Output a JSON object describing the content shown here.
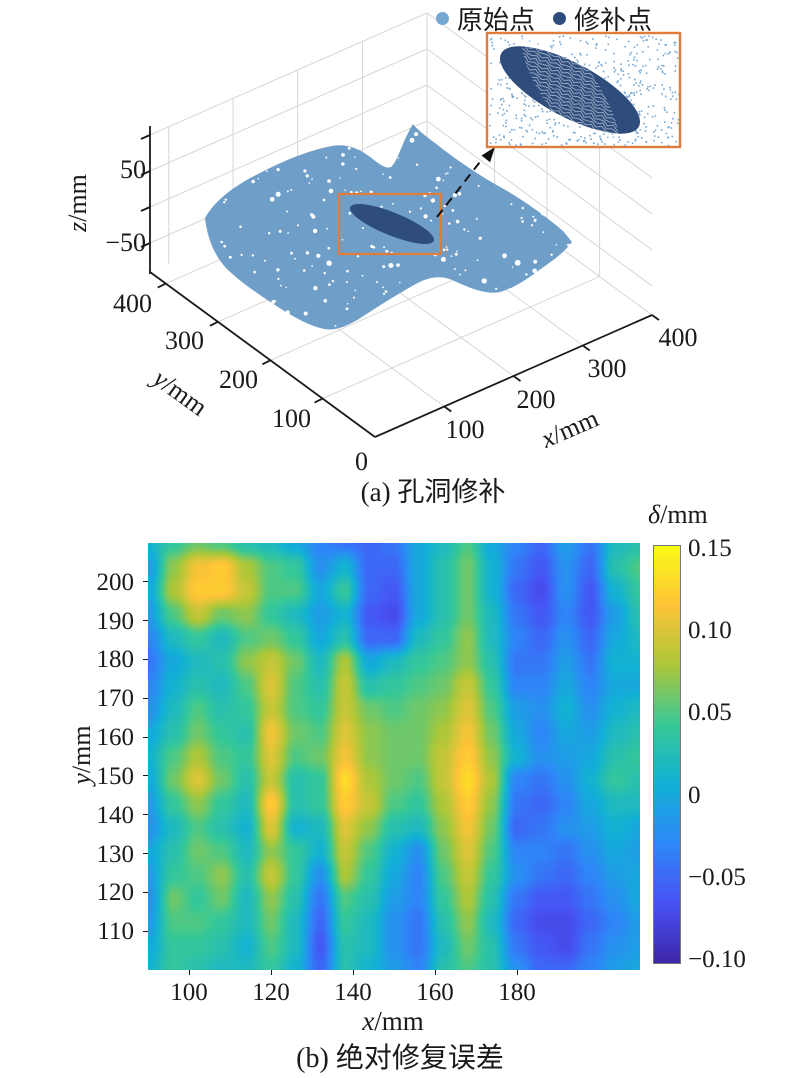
{
  "figure": {
    "panel_a": {
      "caption": "(a) 孔洞修补",
      "legend": [
        {
          "label": "原始点",
          "color": "#74a7d2"
        },
        {
          "label": "修补点",
          "color": "#2e4d7c"
        }
      ],
      "axes": {
        "x": {
          "var": "x",
          "unit": "/mm",
          "ticks": [
            "100",
            "200",
            "300",
            "400"
          ],
          "origin_label": "0"
        },
        "y": {
          "var": "y",
          "unit": "/mm",
          "ticks": [
            "400",
            "300",
            "200",
            "100"
          ]
        },
        "z": {
          "var": "z",
          "unit": "/mm",
          "ticks": [
            "50",
            "−50"
          ]
        }
      },
      "colors": {
        "surface": "#6f9fc9",
        "patch": "#2e4d7c",
        "inset_dots": "#74a7d2",
        "highlight_box": "#e07b3a",
        "grid": "#d6d6d6",
        "axis": "#1a1a1a"
      }
    },
    "panel_b": {
      "caption": "(b) 绝对修复误差",
      "x_axis": {
        "var": "x",
        "unit": "/mm",
        "ticks": [
          100,
          120,
          140,
          160,
          180
        ]
      },
      "y_axis": {
        "var": "y",
        "unit": "/mm",
        "ticks": [
          110,
          120,
          130,
          140,
          150,
          160,
          170,
          180,
          190,
          200
        ]
      },
      "colorbar": {
        "var": "δ",
        "unit": "/mm",
        "tick_values": [
          0.15,
          0.1,
          0.05,
          0,
          -0.05,
          -0.1
        ],
        "tick_labels": [
          "0.15",
          "0.10",
          "0.05",
          "0",
          "−0.05",
          "−0.10"
        ]
      },
      "colormap_stops": [
        "#3E26A8",
        "#4752F4",
        "#2E87F7",
        "#12B1D6",
        "#37C897",
        "#ABC739",
        "#FEC338",
        "#F9FB15"
      ]
    },
    "chart_data": [
      {
        "type": "scatter",
        "subtype": "scatter3d-pointcloud",
        "title": "(a) 孔洞修补",
        "series": [
          {
            "name": "原始点",
            "color": "#74a7d2",
            "description": "original point cloud surface"
          },
          {
            "name": "修补点",
            "color": "#2e4d7c",
            "description": "repaired hole patch, elliptical region near surface center"
          }
        ],
        "xlabel": "x/mm",
        "ylabel": "y/mm",
        "zlabel": "z/mm",
        "xlim": [
          0,
          400
        ],
        "ylim": [
          0,
          400
        ],
        "zlim": [
          -100,
          100
        ],
        "z_ticks_labeled": [
          50,
          -50
        ],
        "annotations": [
          "orange box highlights repaired region",
          "dashed arrow to magnified inset at top right"
        ]
      },
      {
        "type": "heatmap",
        "title": "(b) 绝对修复误差",
        "xlabel": "x/mm",
        "ylabel": "y/mm",
        "value_label": "δ/mm",
        "xlim": [
          90,
          210
        ],
        "ylim": [
          100,
          210
        ],
        "clim": [
          -0.1,
          0.15
        ],
        "colormap": "parula",
        "grid_x": [
          90,
          96,
          102,
          108,
          114,
          120,
          126,
          132,
          138,
          144,
          150,
          156,
          162,
          168,
          174,
          180,
          186,
          192,
          198,
          204,
          210
        ],
        "grid_y_top_to_bottom": [
          210,
          204,
          198,
          192,
          186,
          180,
          174,
          168,
          162,
          156,
          150,
          144,
          138,
          132,
          126,
          120,
          114,
          108,
          102
        ],
        "values": [
          [
            0.01,
            0.04,
            0.06,
            0.05,
            0.03,
            0.02,
            0.0,
            -0.03,
            -0.04,
            -0.05,
            -0.04,
            0.0,
            0.02,
            0.05,
            0.0,
            -0.03,
            -0.05,
            -0.01,
            -0.04,
            0.02,
            0.03
          ],
          [
            -0.01,
            0.07,
            0.11,
            0.12,
            0.08,
            0.05,
            0.04,
            -0.02,
            0.01,
            -0.05,
            -0.05,
            0.0,
            0.03,
            0.06,
            0.01,
            -0.04,
            -0.06,
            -0.02,
            -0.05,
            0.03,
            0.05
          ],
          [
            0.0,
            0.08,
            0.12,
            0.12,
            0.09,
            0.05,
            0.05,
            0.0,
            0.04,
            -0.05,
            -0.06,
            0.0,
            0.03,
            0.06,
            0.01,
            -0.05,
            -0.07,
            -0.02,
            -0.06,
            0.01,
            0.04
          ],
          [
            -0.01,
            0.05,
            0.09,
            0.06,
            0.07,
            0.04,
            0.02,
            -0.01,
            0.01,
            -0.06,
            -0.07,
            0.0,
            0.03,
            0.06,
            0.02,
            -0.04,
            -0.06,
            -0.03,
            -0.06,
            -0.01,
            0.03
          ],
          [
            -0.03,
            0.02,
            0.04,
            0.02,
            0.05,
            0.06,
            0.04,
            0.0,
            0.03,
            -0.05,
            -0.05,
            0.02,
            0.04,
            0.07,
            0.02,
            -0.03,
            -0.05,
            -0.02,
            -0.05,
            0.0,
            0.02
          ],
          [
            -0.04,
            0.0,
            0.02,
            0.03,
            0.07,
            0.09,
            0.06,
            0.02,
            0.08,
            0.0,
            0.02,
            0.04,
            0.05,
            0.07,
            0.03,
            -0.04,
            -0.04,
            -0.01,
            -0.04,
            0.01,
            0.01
          ],
          [
            -0.03,
            0.01,
            0.03,
            0.02,
            0.05,
            0.1,
            0.05,
            0.03,
            0.09,
            0.03,
            0.04,
            0.05,
            0.06,
            0.09,
            0.04,
            -0.03,
            -0.03,
            0.0,
            -0.03,
            0.0,
            0.0
          ],
          [
            -0.02,
            0.02,
            0.05,
            0.03,
            0.04,
            0.09,
            0.05,
            0.04,
            0.09,
            0.06,
            0.05,
            0.06,
            0.07,
            0.1,
            0.05,
            -0.01,
            -0.02,
            0.01,
            -0.02,
            0.01,
            0.02
          ],
          [
            0.0,
            0.03,
            0.06,
            0.04,
            0.03,
            0.11,
            0.06,
            0.05,
            0.1,
            0.07,
            0.06,
            0.06,
            0.08,
            0.11,
            0.06,
            0.0,
            -0.03,
            0.0,
            -0.01,
            0.02,
            0.03
          ],
          [
            0.01,
            0.05,
            0.08,
            0.05,
            0.04,
            0.1,
            0.05,
            0.06,
            0.11,
            0.07,
            0.06,
            0.06,
            0.09,
            0.12,
            0.07,
            0.01,
            -0.02,
            -0.01,
            0.0,
            0.03,
            0.04
          ],
          [
            0.0,
            0.06,
            0.1,
            0.06,
            0.03,
            0.09,
            0.03,
            0.04,
            0.13,
            0.08,
            0.06,
            0.05,
            0.09,
            0.13,
            0.08,
            -0.03,
            -0.04,
            -0.02,
            0.01,
            0.04,
            0.03
          ],
          [
            -0.01,
            0.04,
            0.07,
            0.04,
            0.02,
            0.12,
            0.03,
            0.04,
            0.12,
            0.09,
            0.05,
            0.04,
            0.08,
            0.12,
            0.07,
            -0.04,
            -0.05,
            -0.03,
            0.0,
            0.02,
            0.02
          ],
          [
            -0.02,
            0.02,
            0.05,
            0.03,
            0.01,
            0.1,
            0.01,
            0.02,
            0.1,
            0.07,
            0.03,
            0.02,
            0.07,
            0.11,
            0.06,
            -0.05,
            -0.04,
            -0.02,
            -0.01,
            0.01,
            0.0
          ],
          [
            0.0,
            0.03,
            0.06,
            0.05,
            0.02,
            0.07,
            0.04,
            0.01,
            0.09,
            0.05,
            0.01,
            -0.02,
            0.06,
            0.1,
            0.05,
            -0.03,
            -0.03,
            -0.04,
            -0.02,
            0.0,
            -0.01
          ],
          [
            -0.01,
            0.04,
            0.05,
            0.07,
            0.03,
            0.09,
            0.04,
            -0.02,
            0.08,
            0.04,
            0.0,
            -0.03,
            0.05,
            0.09,
            0.04,
            -0.02,
            -0.04,
            -0.05,
            -0.03,
            -0.01,
            0.0
          ],
          [
            -0.02,
            0.06,
            0.04,
            0.06,
            0.02,
            0.07,
            0.03,
            -0.04,
            0.05,
            0.03,
            -0.01,
            -0.03,
            0.04,
            0.08,
            0.03,
            -0.04,
            -0.06,
            -0.06,
            -0.04,
            -0.02,
            0.0
          ],
          [
            -0.01,
            0.05,
            0.05,
            0.04,
            0.02,
            0.06,
            0.02,
            -0.05,
            0.04,
            0.02,
            -0.02,
            -0.04,
            0.03,
            0.07,
            0.02,
            -0.05,
            -0.07,
            -0.07,
            -0.05,
            -0.03,
            -0.01
          ],
          [
            0.0,
            0.04,
            0.04,
            0.03,
            0.01,
            0.05,
            0.02,
            -0.06,
            0.03,
            0.02,
            -0.02,
            -0.04,
            0.02,
            0.06,
            0.03,
            -0.04,
            -0.06,
            -0.07,
            -0.04,
            -0.02,
            -0.01
          ],
          [
            0.01,
            0.04,
            0.03,
            0.02,
            0.02,
            0.04,
            0.01,
            -0.05,
            0.03,
            0.01,
            -0.01,
            -0.03,
            0.03,
            0.05,
            0.03,
            -0.02,
            -0.05,
            -0.05,
            -0.03,
            -0.01,
            0.0
          ]
        ],
        "grid": false,
        "legend_position": "right-colorbar"
      }
    ]
  }
}
